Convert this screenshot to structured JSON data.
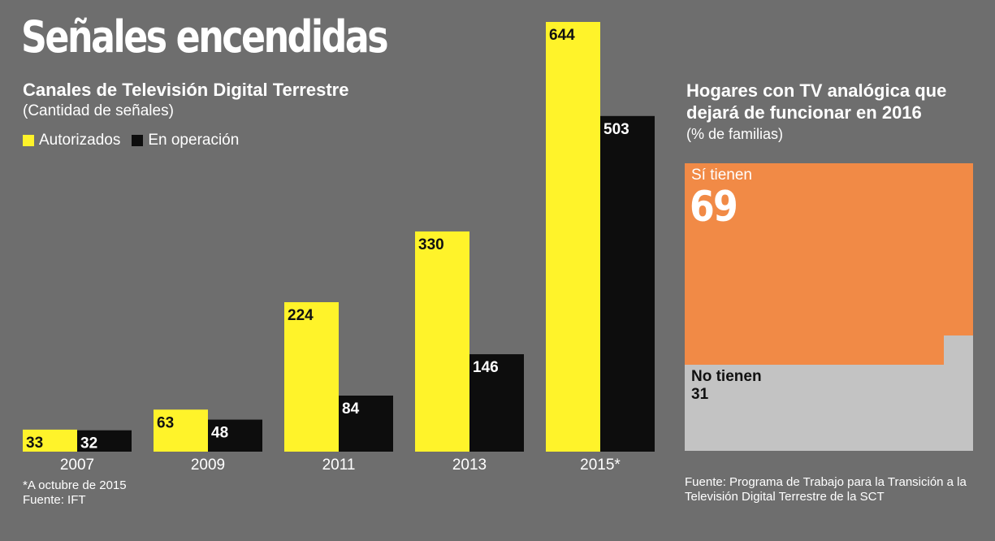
{
  "header": {
    "title": "Señales encendidas",
    "subtitle": "Canales de Televisión Digital Terrestre",
    "units": "(Cantidad de señales)"
  },
  "legend": {
    "authorized": "Autorizados",
    "operating": "En operación"
  },
  "colors": {
    "background": "#6e6e6e",
    "authorized": "#fff32a",
    "operating": "#0d0d0d",
    "si": "#f18a46",
    "no": "#c3c3c3"
  },
  "chart_data": [
    {
      "type": "bar",
      "title": "Canales de Televisión Digital Terrestre",
      "subtitle": "(Cantidad de señales)",
      "categories": [
        "2007",
        "2009",
        "2011",
        "2013",
        "2015*"
      ],
      "series": [
        {
          "name": "Autorizados",
          "values": [
            33,
            63,
            224,
            330,
            644
          ]
        },
        {
          "name": "En operación",
          "values": [
            32,
            48,
            84,
            146,
            503
          ]
        }
      ],
      "ylim": [
        0,
        644
      ],
      "grid": false,
      "legend": "top-left"
    },
    {
      "type": "area",
      "title": "Hogares con TV analógica que dejará de funcionar en 2016",
      "subtitle": "(% de familias)",
      "categories": [
        "Sí tienen",
        "No tienen"
      ],
      "values": [
        69,
        31
      ]
    }
  ],
  "footnote": {
    "note": "*A octubre de 2015",
    "source": "Fuente: IFT"
  },
  "right": {
    "title": "Hogares con TV analógica que dejará de funcionar en 2016",
    "units": "(% de familias)",
    "si_label": "Sí tienen",
    "si_value": "69",
    "no_label": "No tienen",
    "no_value": "31",
    "source": "Fuente: Programa de Trabajo para la Transición a la Televisión Digital Terrestre de la SCT"
  }
}
